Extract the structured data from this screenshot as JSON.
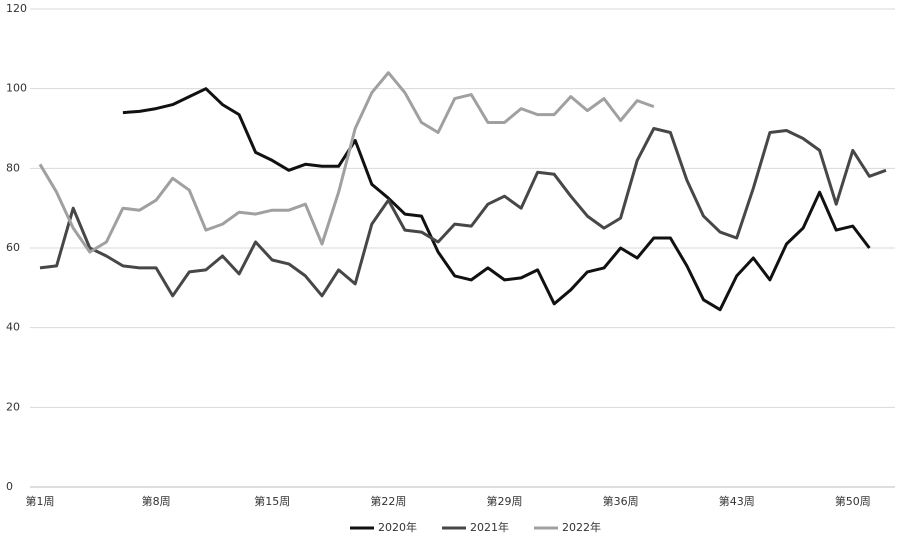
{
  "chart_data": {
    "type": "line",
    "categories": [
      "第1周",
      null,
      null,
      null,
      null,
      null,
      null,
      "第8周",
      null,
      null,
      null,
      null,
      null,
      null,
      "第15周",
      null,
      null,
      null,
      null,
      null,
      null,
      "第22周",
      null,
      null,
      null,
      null,
      null,
      null,
      "第29周",
      null,
      null,
      null,
      null,
      null,
      null,
      "第36周",
      null,
      null,
      null,
      null,
      null,
      null,
      "第43周",
      null,
      null,
      null,
      null,
      null,
      null,
      "第50周",
      null,
      null
    ],
    "series": [
      {
        "name": "2020年",
        "color": "#111111",
        "values": [
          null,
          null,
          null,
          null,
          null,
          94,
          94.3,
          95,
          96,
          98,
          100,
          96,
          93.5,
          84,
          82,
          79.5,
          81,
          80.5,
          80.5,
          87,
          76,
          72.5,
          68.5,
          68,
          59,
          53,
          52,
          55,
          52,
          52.5,
          54.5,
          46,
          49.5,
          54,
          55,
          60,
          57.5,
          62.5,
          62.5,
          55.5,
          47,
          44.5,
          53,
          57.5,
          52,
          61,
          65,
          74,
          64.5,
          65.5,
          60,
          null
        ]
      },
      {
        "name": "2021年",
        "color": "#474747",
        "values": [
          55,
          55.5,
          70,
          60,
          58,
          55.5,
          55,
          55,
          48,
          54,
          54.5,
          58,
          53.5,
          61.5,
          57,
          56,
          53,
          48,
          54.5,
          51,
          66,
          72,
          64.5,
          64,
          61.5,
          66,
          65.5,
          71,
          73,
          70,
          79,
          78.5,
          73,
          68,
          65,
          67.5,
          82,
          90,
          89,
          77,
          68,
          64,
          62.5,
          75,
          89,
          89.5,
          87.5,
          84.5,
          71,
          84.5,
          78,
          79.5
        ]
      },
      {
        "name": "2022年",
        "color": "#a0a0a0",
        "values": [
          81,
          74,
          65,
          59,
          61.5,
          70,
          69.5,
          72,
          77.5,
          74.5,
          64.5,
          66,
          69,
          68.5,
          69.5,
          69.5,
          71,
          61,
          74,
          90,
          99,
          104,
          99,
          91.5,
          89,
          97.5,
          98.5,
          91.5,
          91.5,
          95,
          93.5,
          93.5,
          98,
          94.5,
          97.5,
          92,
          97,
          95.5,
          null,
          null,
          null,
          null,
          null,
          null,
          null,
          null,
          null,
          null,
          null,
          null,
          null,
          null
        ]
      }
    ],
    "ylim": [
      0,
      120
    ],
    "yticks": [
      0,
      20,
      40,
      60,
      80,
      100,
      120
    ],
    "grid": true,
    "legend": "bottom"
  }
}
